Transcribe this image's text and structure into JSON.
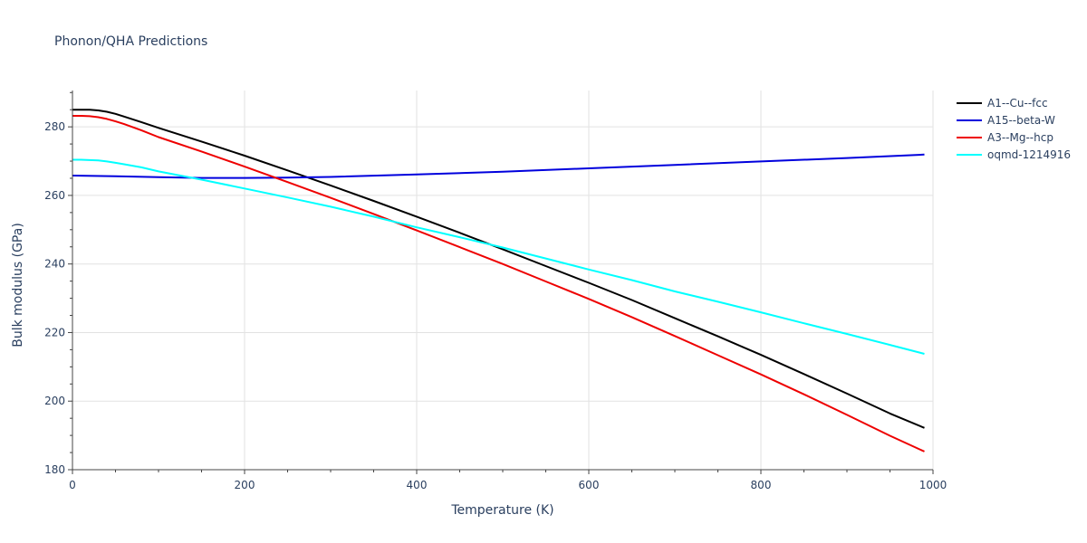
{
  "chart_data": {
    "type": "line",
    "title": "Phonon/QHA Predictions",
    "xlabel": "Temperature (K)",
    "ylabel": "Bulk modulus (GPa)",
    "xlim": [
      0,
      1000
    ],
    "ylim": [
      180,
      290
    ],
    "xticks": [
      0,
      200,
      400,
      600,
      800,
      1000
    ],
    "yticks": [
      180,
      200,
      220,
      240,
      260,
      280
    ],
    "grid": true,
    "legend_position": "right",
    "series": [
      {
        "name": "A1--Cu--fcc",
        "color": "#000000",
        "x": [
          0,
          10,
          20,
          30,
          40,
          50,
          60,
          80,
          100,
          150,
          200,
          250,
          300,
          350,
          400,
          450,
          500,
          550,
          600,
          650,
          700,
          750,
          800,
          850,
          900,
          950,
          990
        ],
        "y": [
          285.0,
          285.0,
          285.0,
          284.8,
          284.4,
          283.8,
          283.0,
          281.4,
          279.7,
          275.7,
          271.6,
          267.3,
          262.9,
          258.4,
          253.8,
          249.1,
          244.3,
          239.4,
          234.5,
          229.5,
          224.2,
          218.9,
          213.5,
          207.9,
          202.2,
          196.4,
          192.2
        ]
      },
      {
        "name": "A15--beta-W",
        "color": "#0000dd",
        "x": [
          0,
          50,
          100,
          150,
          200,
          250,
          300,
          400,
          500,
          600,
          700,
          800,
          900,
          990
        ],
        "y": [
          265.8,
          265.6,
          265.3,
          265.1,
          265.1,
          265.2,
          265.4,
          266.1,
          266.9,
          267.9,
          268.9,
          269.9,
          270.9,
          271.9
        ]
      },
      {
        "name": "A3--Mg--hcp",
        "color": "#ee0000",
        "x": [
          0,
          10,
          20,
          30,
          40,
          50,
          60,
          80,
          100,
          150,
          200,
          250,
          300,
          350,
          400,
          450,
          500,
          550,
          600,
          650,
          700,
          750,
          800,
          850,
          900,
          950,
          990
        ],
        "y": [
          283.2,
          283.2,
          283.1,
          282.8,
          282.3,
          281.6,
          280.8,
          279.0,
          277.0,
          272.8,
          268.4,
          263.9,
          259.3,
          254.6,
          249.8,
          244.9,
          240.0,
          234.9,
          229.8,
          224.5,
          219.0,
          213.4,
          207.8,
          202.0,
          196.0,
          189.9,
          185.3
        ]
      },
      {
        "name": "oqmd-1214916",
        "color": "#00ffff",
        "x": [
          0,
          10,
          20,
          30,
          40,
          50,
          60,
          80,
          100,
          150,
          200,
          250,
          300,
          350,
          400,
          450,
          500,
          550,
          600,
          650,
          700,
          750,
          800,
          850,
          900,
          950,
          990
        ],
        "y": [
          270.4,
          270.4,
          270.3,
          270.2,
          269.9,
          269.5,
          269.1,
          268.2,
          267.0,
          264.6,
          262.0,
          259.4,
          256.7,
          253.8,
          250.7,
          247.8,
          244.8,
          241.6,
          238.4,
          235.3,
          232.0,
          229.0,
          225.9,
          222.7,
          219.6,
          216.4,
          213.8
        ]
      }
    ]
  }
}
